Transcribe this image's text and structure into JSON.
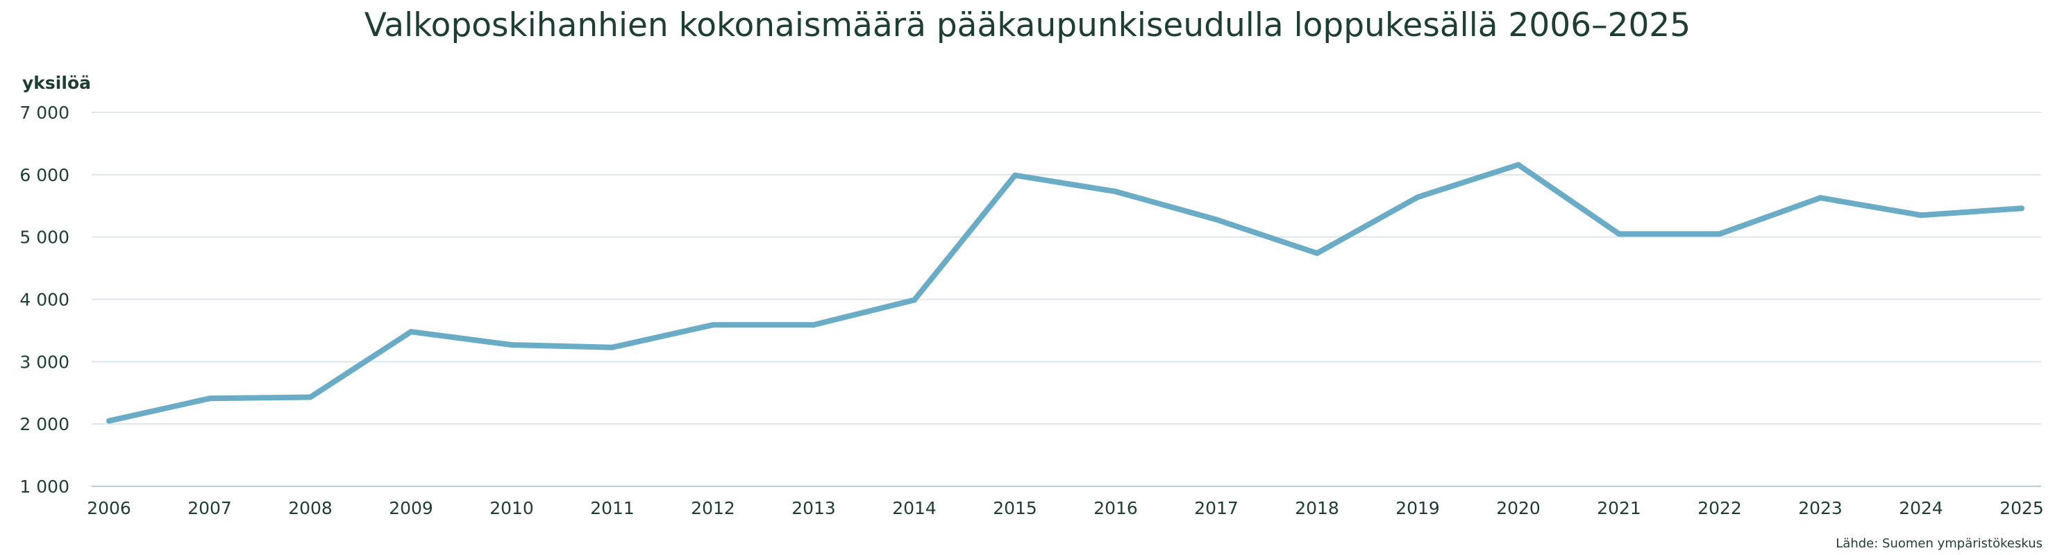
{
  "chart_data": {
    "type": "line",
    "title": "Valkoposkihanhien kokonaismäärä pääkaupunkiseudulla loppukesällä 2006–2025",
    "ylabel": "yksilöä",
    "xlabel": "",
    "source": "Lähde: Suomen ympäristökeskus",
    "x": [
      "2006",
      "2007",
      "2008",
      "2009",
      "2010",
      "2011",
      "2012",
      "2013",
      "2014",
      "2015",
      "2016",
      "2017",
      "2018",
      "2019",
      "2020",
      "2021",
      "2022",
      "2023",
      "2024",
      "2025"
    ],
    "series": [
      {
        "values": [
          2050,
          2410,
          2430,
          3480,
          3270,
          3230,
          3590,
          3590,
          3990,
          5990,
          5730,
          5280,
          4740,
          5640,
          6160,
          5050,
          5050,
          5630,
          5350,
          5460
        ],
        "color": "#6aabc6"
      }
    ],
    "ylim": [
      1000,
      7000
    ],
    "yticks": [
      1000,
      2000,
      3000,
      4000,
      5000,
      6000,
      7000
    ],
    "ytick_labels": [
      "1 000",
      "2 000",
      "3 000",
      "4 000",
      "5 000",
      "6 000",
      "7 000"
    ],
    "grid": true,
    "legend": "none"
  },
  "colors": {
    "text": "#1e3d33",
    "grid": "#dde5ea",
    "line": "#6aabc6"
  }
}
